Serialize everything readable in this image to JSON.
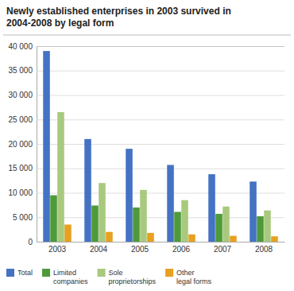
{
  "chart_data": {
    "type": "bar",
    "title": "Newly established enterprises in 2003 survived in\n2004-2008 by legal form",
    "categories": [
      "2003",
      "2004",
      "2005",
      "2006",
      "2007",
      "2008"
    ],
    "series": [
      {
        "name": "Total",
        "color": "#4472C4",
        "values": [
          39000,
          21000,
          19000,
          15700,
          13800,
          12300
        ]
      },
      {
        "name": "Limited\ncompanies",
        "color": "#4E9A3A",
        "values": [
          9500,
          7400,
          7000,
          6100,
          5700,
          5200
        ]
      },
      {
        "name": "Sole\nproprietorships",
        "color": "#A9C97E",
        "values": [
          26500,
          12000,
          10600,
          8500,
          7200,
          6400
        ]
      },
      {
        "name": "Other\nlegal forms",
        "color": "#E8A020",
        "values": [
          3500,
          2000,
          1800,
          1500,
          1200,
          1100
        ]
      }
    ],
    "ylim": [
      0,
      40000
    ],
    "yticks": [
      0,
      {
        "value": 5000,
        "label": "5 000"
      },
      {
        "value": 10000,
        "label": "10 000"
      },
      {
        "value": 15000,
        "label": "15 000"
      },
      {
        "value": 20000,
        "label": "20 000"
      },
      {
        "value": 25000,
        "label": "25 000"
      },
      {
        "value": 30000,
        "label": "30 000"
      },
      {
        "value": 35000,
        "label": "35 000"
      },
      {
        "value": 40000,
        "label": "40 000"
      }
    ],
    "grid": true,
    "legend": "lower left"
  }
}
